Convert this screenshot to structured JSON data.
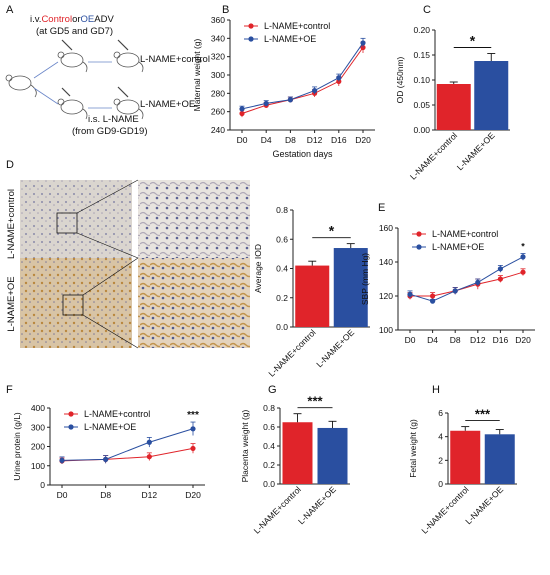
{
  "colors": {
    "control": "#e0242a",
    "oe": "#2a4fa0",
    "axis": "#222222"
  },
  "panels": {
    "A": {
      "letter": "A",
      "line1_pre": "i.v.",
      "line1_red": "Control",
      "line1_mid": "or",
      "line1_blue": "OE",
      "line1_post": "ADV",
      "line2": "(at GD5 and GD7)",
      "line3": "i.s. L-NAME",
      "line4": "(from GD9-GD19)",
      "label_control": "L-NAME+control",
      "label_oe": "L-NAME+OE"
    },
    "D": {
      "letter": "D",
      "row1": "L-NAME+control",
      "row2": "L-NAME+OE"
    }
  },
  "chart_data": [
    {
      "id": "B",
      "letter": "B",
      "type": "line",
      "ylabel": "Maternal weight (g)",
      "xlabel": "Gestation days",
      "categories": [
        "D0",
        "D4",
        "D8",
        "D12",
        "D16",
        "D20"
      ],
      "ylim": [
        240,
        360
      ],
      "yticks": [
        240,
        260,
        280,
        300,
        320,
        340,
        360
      ],
      "legend": "top-left",
      "series": [
        {
          "name": "L-NAME+control",
          "values": [
            258,
            267,
            273,
            280,
            293,
            330
          ],
          "err": [
            4,
            3,
            3,
            4,
            5,
            6
          ]
        },
        {
          "name": "L-NAME+OE",
          "values": [
            263,
            269,
            273,
            283,
            297,
            335
          ],
          "err": [
            3,
            3,
            3,
            4,
            4,
            5
          ]
        }
      ]
    },
    {
      "id": "C",
      "letter": "C",
      "type": "bar",
      "ylabel": "OD (450nm)",
      "categories": [
        "L-NAME+control",
        "L-NAME+OE"
      ],
      "values": [
        0.092,
        0.138
      ],
      "err": [
        0.004,
        0.015
      ],
      "ylim": [
        0,
        0.2
      ],
      "yticks": [
        0.0,
        0.05,
        0.1,
        0.15,
        0.2
      ],
      "yticklabels": [
        "0.00",
        "0.05",
        "0.10",
        "0.15",
        "0.20"
      ],
      "sig": "*"
    },
    {
      "id": "Dbar",
      "type": "bar",
      "ylabel": "Average IOD",
      "categories": [
        "L-NAME+control",
        "L-NAME+OE"
      ],
      "values": [
        0.42,
        0.54
      ],
      "err": [
        0.03,
        0.03
      ],
      "ylim": [
        0,
        0.8
      ],
      "yticks": [
        0.0,
        0.2,
        0.4,
        0.6,
        0.8
      ],
      "yticklabels": [
        "0.0",
        "0.2",
        "0.4",
        "0.6",
        "0.8"
      ],
      "sig": "*"
    },
    {
      "id": "E",
      "letter": "E",
      "type": "line",
      "ylabel": "SBP (mm Hg)",
      "categories": [
        "D0",
        "D4",
        "D8",
        "D12",
        "D16",
        "D20"
      ],
      "ylim": [
        100,
        160
      ],
      "yticks": [
        100,
        120,
        140,
        160
      ],
      "legend": "top-left",
      "series": [
        {
          "name": "L-NAME+control",
          "values": [
            120,
            120,
            123,
            127,
            130,
            134
          ],
          "err": [
            2,
            2,
            2,
            3,
            2,
            2
          ]
        },
        {
          "name": "L-NAME+OE",
          "values": [
            121,
            117,
            123,
            128,
            136,
            143
          ],
          "err": [
            2,
            1,
            2,
            2,
            2,
            2
          ]
        }
      ],
      "annotations": [
        {
          "x": "D20",
          "text": "*"
        }
      ]
    },
    {
      "id": "F",
      "letter": "F",
      "type": "line",
      "ylabel": "Urine protein (g/L)",
      "categories": [
        "D0",
        "D8",
        "D12",
        "D20"
      ],
      "ylim": [
        0,
        400
      ],
      "yticks": [
        0,
        100,
        200,
        300,
        400
      ],
      "legend": "top-left",
      "series": [
        {
          "name": "L-NAME+control",
          "values": [
            125,
            133,
            147,
            190
          ],
          "err": [
            15,
            20,
            20,
            25
          ]
        },
        {
          "name": "L-NAME+OE",
          "values": [
            128,
            133,
            222,
            292
          ],
          "err": [
            18,
            20,
            25,
            35
          ]
        }
      ],
      "annotations": [
        {
          "x": "D20",
          "text": "***"
        }
      ]
    },
    {
      "id": "G",
      "letter": "G",
      "type": "bar",
      "ylabel": "Placenta weight (g)",
      "categories": [
        "L-NAME+control",
        "L-NAME+OE"
      ],
      "values": [
        0.65,
        0.59
      ],
      "err": [
        0.09,
        0.07
      ],
      "ylim": [
        0,
        0.8
      ],
      "yticks": [
        0.0,
        0.2,
        0.4,
        0.6,
        0.8
      ],
      "yticklabels": [
        "0.0",
        "0.2",
        "0.4",
        "0.6",
        "0.8"
      ],
      "sig": "***"
    },
    {
      "id": "H",
      "letter": "H",
      "type": "bar",
      "ylabel": "Fetal weight (g)",
      "categories": [
        "L-NAME+control",
        "L-NAME+OE"
      ],
      "values": [
        4.5,
        4.2
      ],
      "err": [
        0.35,
        0.4
      ],
      "ylim": [
        0,
        6
      ],
      "yticks": [
        0,
        2,
        4,
        6
      ],
      "yticklabels": [
        "0",
        "2",
        "4",
        "6"
      ],
      "sig": "***"
    }
  ]
}
